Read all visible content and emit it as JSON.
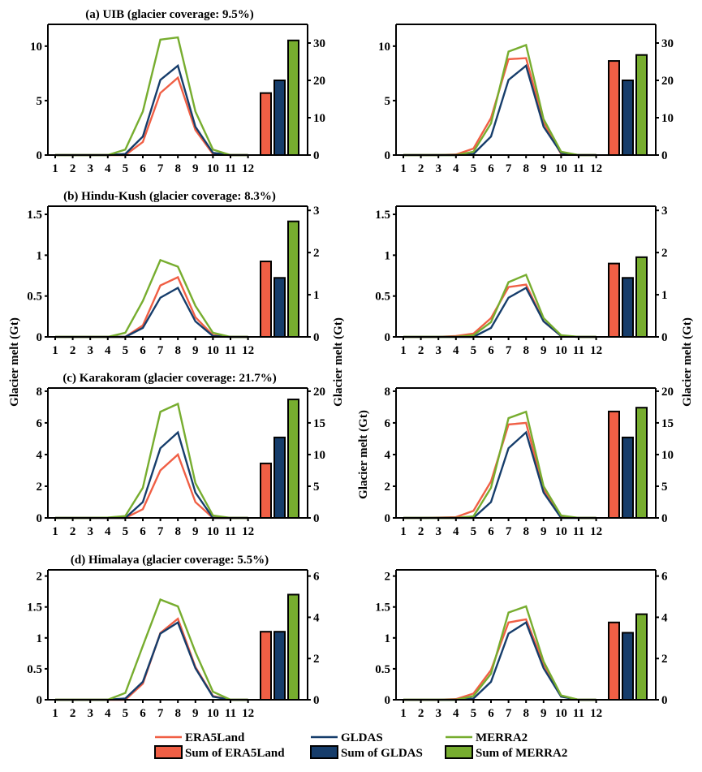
{
  "colors": {
    "era5land": "#f05f45",
    "gldas": "#163d6b",
    "merra2": "#77ad2f"
  },
  "ylabel": "Glacier melt (Gt)",
  "legend": {
    "lines": [
      "ERA5Land",
      "GLDAS",
      "MERRA2"
    ],
    "bars": [
      "Sum of ERA5Land",
      "Sum of GLDAS",
      "Sum of MERRA2"
    ]
  },
  "chart_data": [
    {
      "type": "line+bar",
      "panel": "a-left",
      "title": "(a) UIB (glacier coverage: 9.5%)",
      "x": [
        1,
        2,
        3,
        4,
        5,
        6,
        7,
        8,
        9,
        10,
        11,
        12
      ],
      "xtick_labels": [
        "1",
        "2",
        "3",
        "4",
        "5",
        "6",
        "7",
        "8",
        "9",
        "10",
        "11",
        "12"
      ],
      "ylim": [
        0,
        12
      ],
      "yticks": [
        0,
        5,
        10
      ],
      "ytick_labels": [
        "0",
        "5",
        "10"
      ],
      "y2lim": [
        0,
        35
      ],
      "y2ticks": [
        0,
        10,
        20,
        30
      ],
      "y2tick_labels": [
        "0",
        "10",
        "20",
        "30"
      ],
      "series": [
        {
          "name": "ERA5Land",
          "values": [
            0,
            0,
            0,
            0,
            0,
            1.2,
            5.7,
            7.1,
            2.3,
            0.1,
            0,
            0
          ]
        },
        {
          "name": "GLDAS",
          "values": [
            0,
            0,
            0,
            0,
            0.1,
            1.7,
            6.9,
            8.2,
            2.6,
            0.2,
            0,
            0
          ]
        },
        {
          "name": "MERRA2",
          "values": [
            0,
            0,
            0,
            0,
            0.5,
            4.0,
            10.6,
            10.8,
            4.0,
            0.5,
            0,
            0
          ]
        }
      ],
      "bars": [
        {
          "name": "Sum of ERA5Land",
          "value": 16.6
        },
        {
          "name": "Sum of GLDAS",
          "value": 20.0
        },
        {
          "name": "Sum of MERRA2",
          "value": 30.7
        }
      ]
    },
    {
      "type": "line+bar",
      "panel": "a-right",
      "title": "",
      "x": [
        1,
        2,
        3,
        4,
        5,
        6,
        7,
        8,
        9,
        10,
        11,
        12
      ],
      "xtick_labels": [
        "1",
        "2",
        "3",
        "4",
        "5",
        "6",
        "7",
        "8",
        "9",
        "10",
        "11",
        "12"
      ],
      "ylim": [
        0,
        12
      ],
      "yticks": [
        0,
        5,
        10
      ],
      "ytick_labels": [
        "0",
        "5",
        "10"
      ],
      "y2lim": [
        0,
        35
      ],
      "y2ticks": [
        0,
        10,
        20,
        30
      ],
      "y2tick_labels": [
        "0",
        "10",
        "20",
        "30"
      ],
      "series": [
        {
          "name": "ERA5Land",
          "values": [
            0,
            0,
            0,
            0.05,
            0.6,
            3.4,
            8.8,
            8.9,
            3.0,
            0.1,
            0,
            0
          ]
        },
        {
          "name": "GLDAS",
          "values": [
            0,
            0,
            0,
            0,
            0.1,
            1.7,
            6.9,
            8.2,
            2.6,
            0.2,
            0,
            0
          ]
        },
        {
          "name": "MERRA2",
          "values": [
            0,
            0,
            0,
            0,
            0.3,
            2.9,
            9.5,
            10.1,
            3.3,
            0.3,
            0,
            0
          ]
        }
      ],
      "bars": [
        {
          "name": "Sum of ERA5Land",
          "value": 25.2
        },
        {
          "name": "Sum of GLDAS",
          "value": 20.0
        },
        {
          "name": "Sum of MERRA2",
          "value": 26.8
        }
      ]
    },
    {
      "type": "line+bar",
      "panel": "b-left",
      "title": "(b) Hindu-Kush (glacier coverage: 8.3%)",
      "x": [
        1,
        2,
        3,
        4,
        5,
        6,
        7,
        8,
        9,
        10,
        11,
        12
      ],
      "xtick_labels": [
        "1",
        "2",
        "3",
        "4",
        "5",
        "6",
        "7",
        "8",
        "9",
        "10",
        "11",
        "12"
      ],
      "ylim": [
        0,
        1.6
      ],
      "yticks": [
        0,
        0.5,
        1,
        1.5
      ],
      "ytick_labels": [
        "0",
        "0.5",
        "1",
        "1.5"
      ],
      "y2lim": [
        0,
        3.1
      ],
      "y2ticks": [
        0,
        1,
        2,
        3
      ],
      "y2tick_labels": [
        "0",
        "1",
        "2",
        "3"
      ],
      "series": [
        {
          "name": "ERA5Land",
          "values": [
            0,
            0,
            0,
            0,
            0,
            0.14,
            0.63,
            0.73,
            0.24,
            0.02,
            0,
            0
          ]
        },
        {
          "name": "GLDAS",
          "values": [
            0,
            0,
            0,
            0,
            0,
            0.11,
            0.48,
            0.6,
            0.19,
            0.01,
            0,
            0
          ]
        },
        {
          "name": "MERRA2",
          "values": [
            0,
            0,
            0,
            0,
            0.05,
            0.44,
            0.94,
            0.86,
            0.38,
            0.05,
            0,
            0
          ]
        }
      ],
      "bars": [
        {
          "name": "Sum of ERA5Land",
          "value": 1.79
        },
        {
          "name": "Sum of GLDAS",
          "value": 1.4
        },
        {
          "name": "Sum of MERRA2",
          "value": 2.74
        }
      ]
    },
    {
      "type": "line+bar",
      "panel": "b-right",
      "title": "",
      "x": [
        1,
        2,
        3,
        4,
        5,
        6,
        7,
        8,
        9,
        10,
        11,
        12
      ],
      "xtick_labels": [
        "1",
        "2",
        "3",
        "4",
        "5",
        "6",
        "7",
        "8",
        "9",
        "10",
        "11",
        "12"
      ],
      "ylim": [
        0,
        1.6
      ],
      "yticks": [
        0,
        0.5,
        1,
        1.5
      ],
      "ytick_labels": [
        "0",
        "0.5",
        "1",
        "1.5"
      ],
      "y2lim": [
        0,
        3.1
      ],
      "y2ticks": [
        0,
        1,
        2,
        3
      ],
      "y2tick_labels": [
        "0",
        "1",
        "2",
        "3"
      ],
      "series": [
        {
          "name": "ERA5Land",
          "values": [
            0,
            0,
            0,
            0.01,
            0.04,
            0.23,
            0.61,
            0.64,
            0.19,
            0.01,
            0,
            0
          ]
        },
        {
          "name": "GLDAS",
          "values": [
            0,
            0,
            0,
            0,
            0,
            0.11,
            0.48,
            0.6,
            0.19,
            0.01,
            0,
            0
          ]
        },
        {
          "name": "MERRA2",
          "values": [
            0,
            0,
            0,
            0,
            0.02,
            0.18,
            0.67,
            0.76,
            0.23,
            0.02,
            0,
            0
          ]
        }
      ],
      "bars": [
        {
          "name": "Sum of ERA5Land",
          "value": 1.74
        },
        {
          "name": "Sum of GLDAS",
          "value": 1.4
        },
        {
          "name": "Sum of MERRA2",
          "value": 1.89
        }
      ]
    },
    {
      "type": "line+bar",
      "panel": "c-left",
      "title": "(c) Karakoram (glacier coverage: 21.7%)",
      "x": [
        1,
        2,
        3,
        4,
        5,
        6,
        7,
        8,
        9,
        10,
        11,
        12
      ],
      "xtick_labels": [
        "1",
        "2",
        "3",
        "4",
        "5",
        "6",
        "7",
        "8",
        "9",
        "10",
        "11",
        "12"
      ],
      "ylim": [
        0,
        8.2
      ],
      "yticks": [
        0,
        2,
        4,
        6,
        8
      ],
      "ytick_labels": [
        "0",
        "2",
        "4",
        "6",
        "8"
      ],
      "y2lim": [
        0,
        20.5
      ],
      "y2ticks": [
        0,
        5,
        10,
        15,
        20
      ],
      "y2tick_labels": [
        "0",
        "5",
        "10",
        "15",
        "20"
      ],
      "series": [
        {
          "name": "ERA5Land",
          "values": [
            0,
            0,
            0,
            0,
            0,
            0.55,
            3.0,
            4.0,
            1.0,
            0,
            0,
            0
          ]
        },
        {
          "name": "GLDAS",
          "values": [
            0,
            0,
            0,
            0,
            0,
            1.0,
            4.4,
            5.4,
            1.6,
            0,
            0,
            0
          ]
        },
        {
          "name": "MERRA2",
          "values": [
            0,
            0,
            0,
            0.02,
            0.12,
            1.9,
            6.7,
            7.2,
            2.2,
            0.15,
            0,
            0
          ]
        }
      ],
      "bars": [
        {
          "name": "Sum of ERA5Land",
          "value": 8.6
        },
        {
          "name": "Sum of GLDAS",
          "value": 12.7
        },
        {
          "name": "Sum of MERRA2",
          "value": 18.7
        }
      ]
    },
    {
      "type": "line+bar",
      "panel": "c-right",
      "title": "",
      "x": [
        1,
        2,
        3,
        4,
        5,
        6,
        7,
        8,
        9,
        10,
        11,
        12
      ],
      "xtick_labels": [
        "1",
        "2",
        "3",
        "4",
        "5",
        "6",
        "7",
        "8",
        "9",
        "10",
        "11",
        "12"
      ],
      "ylim": [
        0,
        8.2
      ],
      "yticks": [
        0,
        2,
        4,
        6,
        8
      ],
      "ytick_labels": [
        "0",
        "2",
        "4",
        "6",
        "8"
      ],
      "y2lim": [
        0,
        20.5
      ],
      "y2ticks": [
        0,
        5,
        10,
        15,
        20
      ],
      "y2tick_labels": [
        "0",
        "5",
        "10",
        "15",
        "20"
      ],
      "series": [
        {
          "name": "ERA5Land",
          "values": [
            0,
            0,
            0.02,
            0.05,
            0.45,
            2.3,
            5.9,
            6.0,
            1.8,
            0.1,
            0,
            0
          ]
        },
        {
          "name": "GLDAS",
          "values": [
            0,
            0,
            0,
            0,
            0,
            1.0,
            4.4,
            5.4,
            1.6,
            0,
            0,
            0
          ]
        },
        {
          "name": "MERRA2",
          "values": [
            0,
            0,
            0,
            0,
            0.1,
            1.9,
            6.3,
            6.7,
            2.0,
            0.15,
            0,
            0
          ]
        }
      ],
      "bars": [
        {
          "name": "Sum of ERA5Land",
          "value": 16.8
        },
        {
          "name": "Sum of GLDAS",
          "value": 12.7
        },
        {
          "name": "Sum of MERRA2",
          "value": 17.4
        }
      ]
    },
    {
      "type": "line+bar",
      "panel": "d-left",
      "title": "(d) Himalaya (glacier coverage: 5.5%)",
      "x": [
        1,
        2,
        3,
        4,
        5,
        6,
        7,
        8,
        9,
        10,
        11,
        12
      ],
      "xtick_labels": [
        "1",
        "2",
        "3",
        "4",
        "5",
        "6",
        "7",
        "8",
        "9",
        "10",
        "11",
        "12"
      ],
      "ylim": [
        0,
        2.1
      ],
      "yticks": [
        0,
        0.5,
        1,
        1.5,
        2
      ],
      "ytick_labels": [
        "0",
        "0.5",
        "1",
        "1.5",
        "2"
      ],
      "y2lim": [
        0,
        6.3
      ],
      "y2ticks": [
        0,
        2,
        4,
        6
      ],
      "y2tick_labels": [
        "0",
        "2",
        "4",
        "6"
      ],
      "series": [
        {
          "name": "ERA5Land",
          "values": [
            0,
            0,
            0,
            0,
            0,
            0.26,
            1.08,
            1.31,
            0.53,
            0.06,
            0,
            0
          ]
        },
        {
          "name": "GLDAS",
          "values": [
            0,
            0,
            0,
            0,
            0.02,
            0.29,
            1.07,
            1.25,
            0.51,
            0.05,
            0,
            0
          ]
        },
        {
          "name": "MERRA2",
          "values": [
            0,
            0,
            0,
            0,
            0.11,
            0.87,
            1.62,
            1.51,
            0.77,
            0.13,
            0,
            0
          ]
        }
      ],
      "bars": [
        {
          "name": "Sum of ERA5Land",
          "value": 3.3
        },
        {
          "name": "Sum of GLDAS",
          "value": 3.3
        },
        {
          "name": "Sum of MERRA2",
          "value": 5.1
        }
      ]
    },
    {
      "type": "line+bar",
      "panel": "d-right",
      "title": "",
      "x": [
        1,
        2,
        3,
        4,
        5,
        6,
        7,
        8,
        9,
        10,
        11,
        12
      ],
      "xtick_labels": [
        "1",
        "2",
        "3",
        "4",
        "5",
        "6",
        "7",
        "8",
        "9",
        "10",
        "11",
        "12"
      ],
      "ylim": [
        0,
        2.1
      ],
      "yticks": [
        0,
        0.5,
        1,
        1.5,
        2
      ],
      "ytick_labels": [
        "0",
        "0.5",
        "1",
        "1.5",
        "2"
      ],
      "y2lim": [
        0,
        6.3
      ],
      "y2ticks": [
        0,
        2,
        4,
        6
      ],
      "y2tick_labels": [
        "0",
        "2",
        "4",
        "6"
      ],
      "series": [
        {
          "name": "ERA5Land",
          "values": [
            0,
            0,
            0,
            0.01,
            0.1,
            0.48,
            1.25,
            1.3,
            0.58,
            0.06,
            0,
            0
          ]
        },
        {
          "name": "GLDAS",
          "values": [
            0,
            0,
            0,
            0,
            0.02,
            0.29,
            1.07,
            1.25,
            0.51,
            0.05,
            0,
            0
          ]
        },
        {
          "name": "MERRA2",
          "values": [
            0,
            0,
            0,
            0,
            0.06,
            0.42,
            1.41,
            1.51,
            0.62,
            0.07,
            0,
            0
          ]
        }
      ],
      "bars": [
        {
          "name": "Sum of ERA5Land",
          "value": 3.75
        },
        {
          "name": "Sum of GLDAS",
          "value": 3.25
        },
        {
          "name": "Sum of MERRA2",
          "value": 4.15
        }
      ]
    }
  ]
}
